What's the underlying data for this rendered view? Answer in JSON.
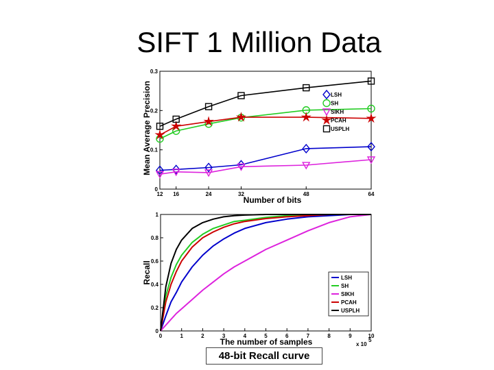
{
  "slide": {
    "title": "SIFT 1 Million Data",
    "caption": "48-bit Recall curve"
  },
  "colors": {
    "LSH": "#0000cc",
    "SH": "#22cc22",
    "SIKH": "#dd22dd",
    "PCAH": "#cc0000",
    "USPLH": "#000000"
  },
  "chart_data": [
    {
      "type": "line",
      "title": "",
      "xlabel": "Number of bits",
      "ylabel": "Mean Average Precision",
      "x": [
        12,
        16,
        24,
        32,
        48,
        64
      ],
      "xticks": [
        "12",
        "16",
        "24",
        "32",
        "48",
        "64"
      ],
      "yticks": [
        "0",
        "0.1",
        "0.2",
        "0.3"
      ],
      "xlim": [
        12,
        64
      ],
      "ylim": [
        0,
        0.3
      ],
      "grid": false,
      "legend": "upper-right",
      "series": [
        {
          "name": "LSH",
          "marker": "diamond",
          "values": [
            0.048,
            0.05,
            0.055,
            0.062,
            0.103,
            0.108
          ]
        },
        {
          "name": "SH",
          "marker": "circle",
          "values": [
            0.128,
            0.148,
            0.166,
            0.182,
            0.201,
            0.205
          ]
        },
        {
          "name": "SIKH",
          "marker": "triangle-down",
          "values": [
            0.038,
            0.044,
            0.042,
            0.057,
            0.061,
            0.075
          ]
        },
        {
          "name": "PCAH",
          "marker": "star",
          "values": [
            0.138,
            0.16,
            0.172,
            0.183,
            0.183,
            0.18
          ]
        },
        {
          "name": "USPLH",
          "marker": "square",
          "values": [
            0.16,
            0.178,
            0.21,
            0.238,
            0.258,
            0.275
          ]
        }
      ]
    },
    {
      "type": "line",
      "title": "",
      "xlabel": "The number of samples",
      "ylabel": "Recall",
      "x_multiplier": "x 10",
      "x_multiplier_exp": "5",
      "xticks": [
        "0",
        "1",
        "2",
        "3",
        "4",
        "5",
        "6",
        "7",
        "8",
        "9",
        "10"
      ],
      "yticks": [
        "0",
        "0.2",
        "0.4",
        "0.6",
        "0.8",
        "1"
      ],
      "xlim": [
        0,
        10
      ],
      "ylim": [
        0,
        1
      ],
      "grid": false,
      "legend": "lower-right",
      "x": [
        0,
        0.25,
        0.5,
        0.75,
        1,
        1.5,
        2,
        2.5,
        3,
        3.5,
        4,
        5,
        6,
        7,
        8,
        9,
        10
      ],
      "series": [
        {
          "name": "LSH",
          "values": [
            0,
            0.13,
            0.25,
            0.33,
            0.42,
            0.55,
            0.65,
            0.73,
            0.79,
            0.84,
            0.88,
            0.93,
            0.96,
            0.98,
            0.99,
            1.0,
            1.0
          ]
        },
        {
          "name": "SH",
          "values": [
            0,
            0.3,
            0.46,
            0.57,
            0.65,
            0.76,
            0.83,
            0.88,
            0.91,
            0.94,
            0.95,
            0.975,
            0.99,
            0.995,
            1.0,
            1.0,
            1.0
          ]
        },
        {
          "name": "SIKH",
          "values": [
            0,
            0.05,
            0.1,
            0.15,
            0.19,
            0.27,
            0.35,
            0.42,
            0.49,
            0.55,
            0.6,
            0.7,
            0.78,
            0.86,
            0.93,
            0.98,
            1.0
          ]
        },
        {
          "name": "PCAH",
          "values": [
            0,
            0.25,
            0.4,
            0.51,
            0.6,
            0.72,
            0.8,
            0.85,
            0.89,
            0.92,
            0.94,
            0.965,
            0.98,
            0.99,
            1.0,
            1.0,
            1.0
          ]
        },
        {
          "name": "USPLH",
          "values": [
            0,
            0.38,
            0.58,
            0.7,
            0.78,
            0.88,
            0.93,
            0.96,
            0.98,
            0.99,
            0.995,
            1.0,
            1.0,
            1.0,
            1.0,
            1.0,
            1.0
          ]
        }
      ]
    }
  ]
}
